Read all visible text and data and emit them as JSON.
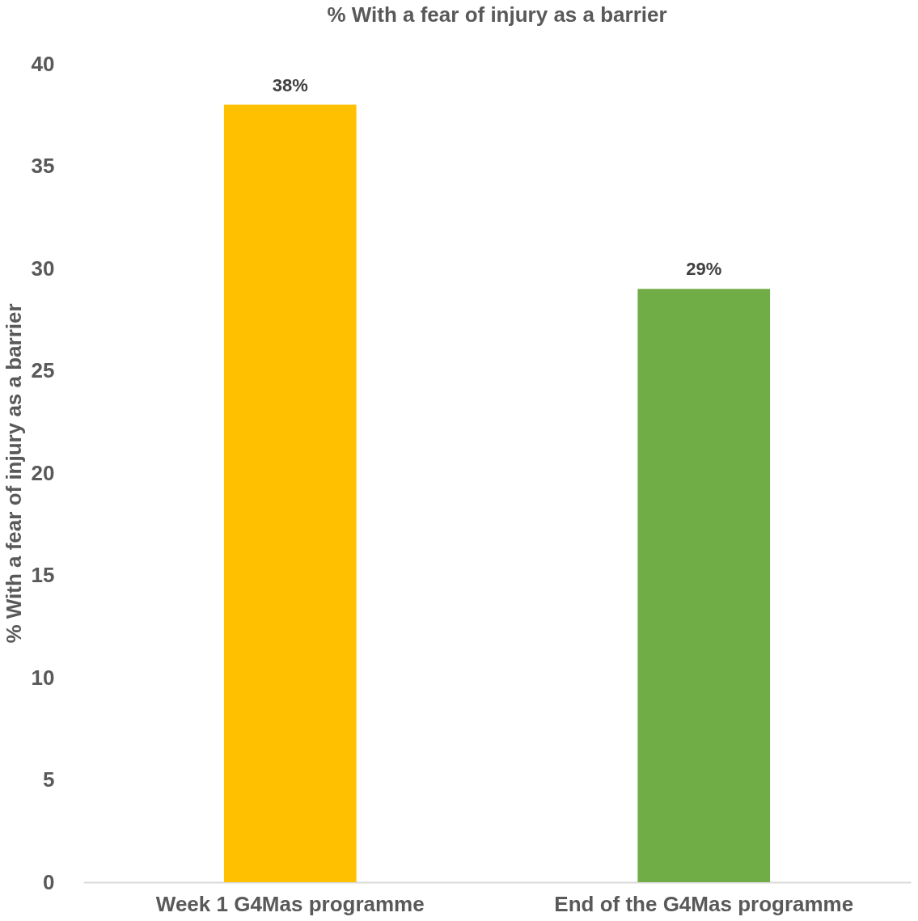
{
  "chart_data": {
    "type": "bar",
    "title": "% With a fear of injury as a barrier",
    "ylabel": "% With a fear of injury as a barrier",
    "categories": [
      "Week 1 G4Mas programme",
      "End of the G4Mas programme"
    ],
    "values": [
      38,
      29
    ],
    "colors": [
      "#ffc000",
      "#70ad47"
    ],
    "value_labels": [
      "38%",
      "29%"
    ],
    "ylim": [
      0,
      40
    ],
    "yticks": [
      0,
      5,
      10,
      15,
      20,
      25,
      30,
      35,
      40
    ],
    "grid": false
  }
}
